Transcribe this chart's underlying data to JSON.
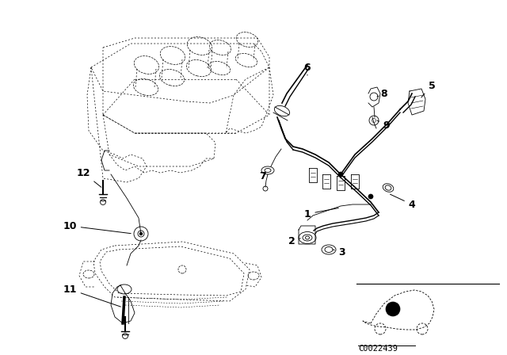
{
  "background_color": "#ffffff",
  "diagram_code": "C0022439",
  "line_color": "#000000",
  "label_fontsize": 9,
  "label_fontweight": "bold"
}
